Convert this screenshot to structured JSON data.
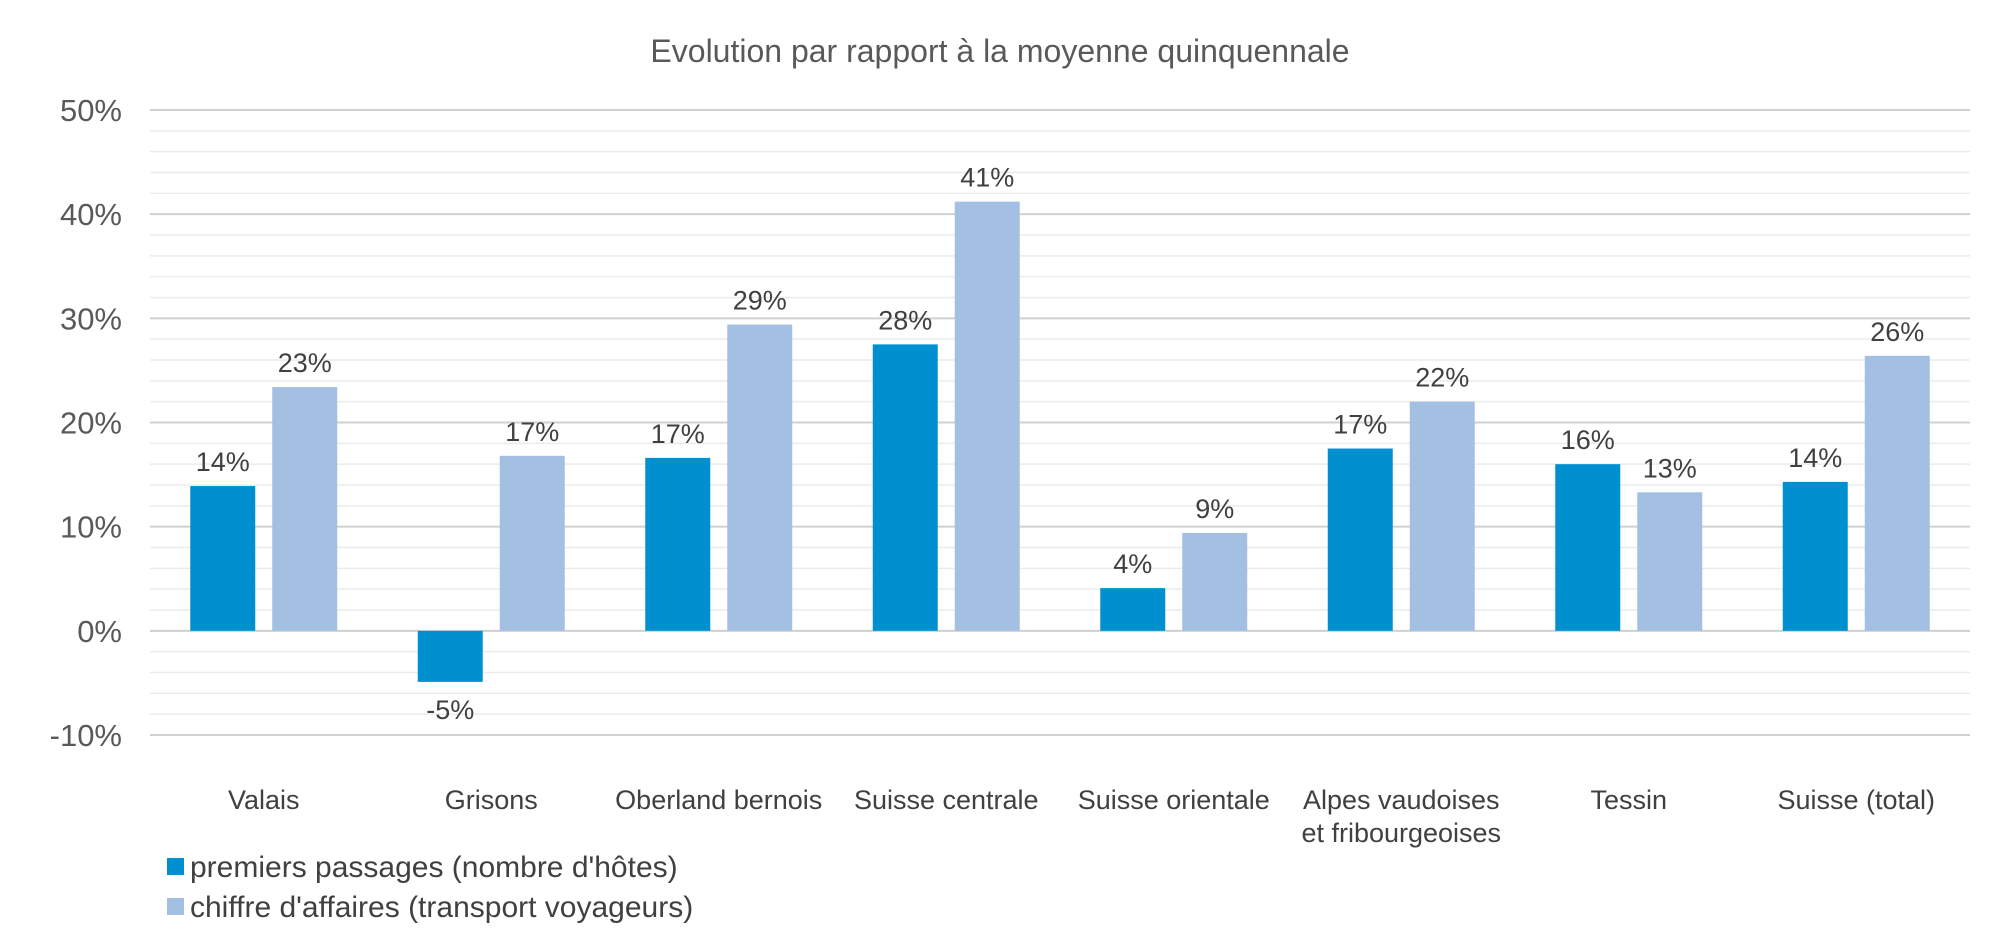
{
  "chart_data": {
    "type": "bar",
    "title": "Evolution par rapport à la moyenne quinquennale",
    "xlabel": "",
    "ylabel": "",
    "categories": [
      [
        "Valais"
      ],
      [
        "Grisons"
      ],
      [
        "Oberland bernois"
      ],
      [
        "Suisse centrale"
      ],
      [
        "Suisse orientale"
      ],
      [
        "Alpes vaudoises",
        "et fribourgeoises"
      ],
      [
        "Tessin"
      ],
      [
        "Suisse (total)"
      ]
    ],
    "series": [
      {
        "name": "premiers passages (nombre d'hôtes)",
        "color": "#0090D0",
        "values": [
          13.9,
          -4.9,
          16.6,
          27.5,
          4.1,
          17.5,
          16.0,
          14.3
        ],
        "labels": [
          "14%",
          "-5%",
          "17%",
          "28%",
          "4%",
          "17%",
          "16%",
          "14%"
        ]
      },
      {
        "name": "chiffre d'affaires (transport voyageurs)",
        "color": "#A3BFE1",
        "values": [
          23.4,
          16.8,
          29.4,
          41.2,
          9.4,
          22.0,
          13.3,
          26.4
        ],
        "labels": [
          "23%",
          "17%",
          "29%",
          "41%",
          "9%",
          "22%",
          "13%",
          "26%"
        ]
      }
    ],
    "ylim": [
      -10,
      50
    ],
    "yticks": [
      {
        "value": 50,
        "label": "50%"
      },
      {
        "value": 40,
        "label": "40%"
      },
      {
        "value": 30,
        "label": "30%"
      },
      {
        "value": 20,
        "label": "20%"
      },
      {
        "value": 10,
        "label": "10%"
      },
      {
        "value": 0,
        "label": "0%"
      },
      {
        "value": -10,
        "label": "-10%"
      }
    ],
    "grid": true,
    "legend_position": "bottom-left"
  }
}
